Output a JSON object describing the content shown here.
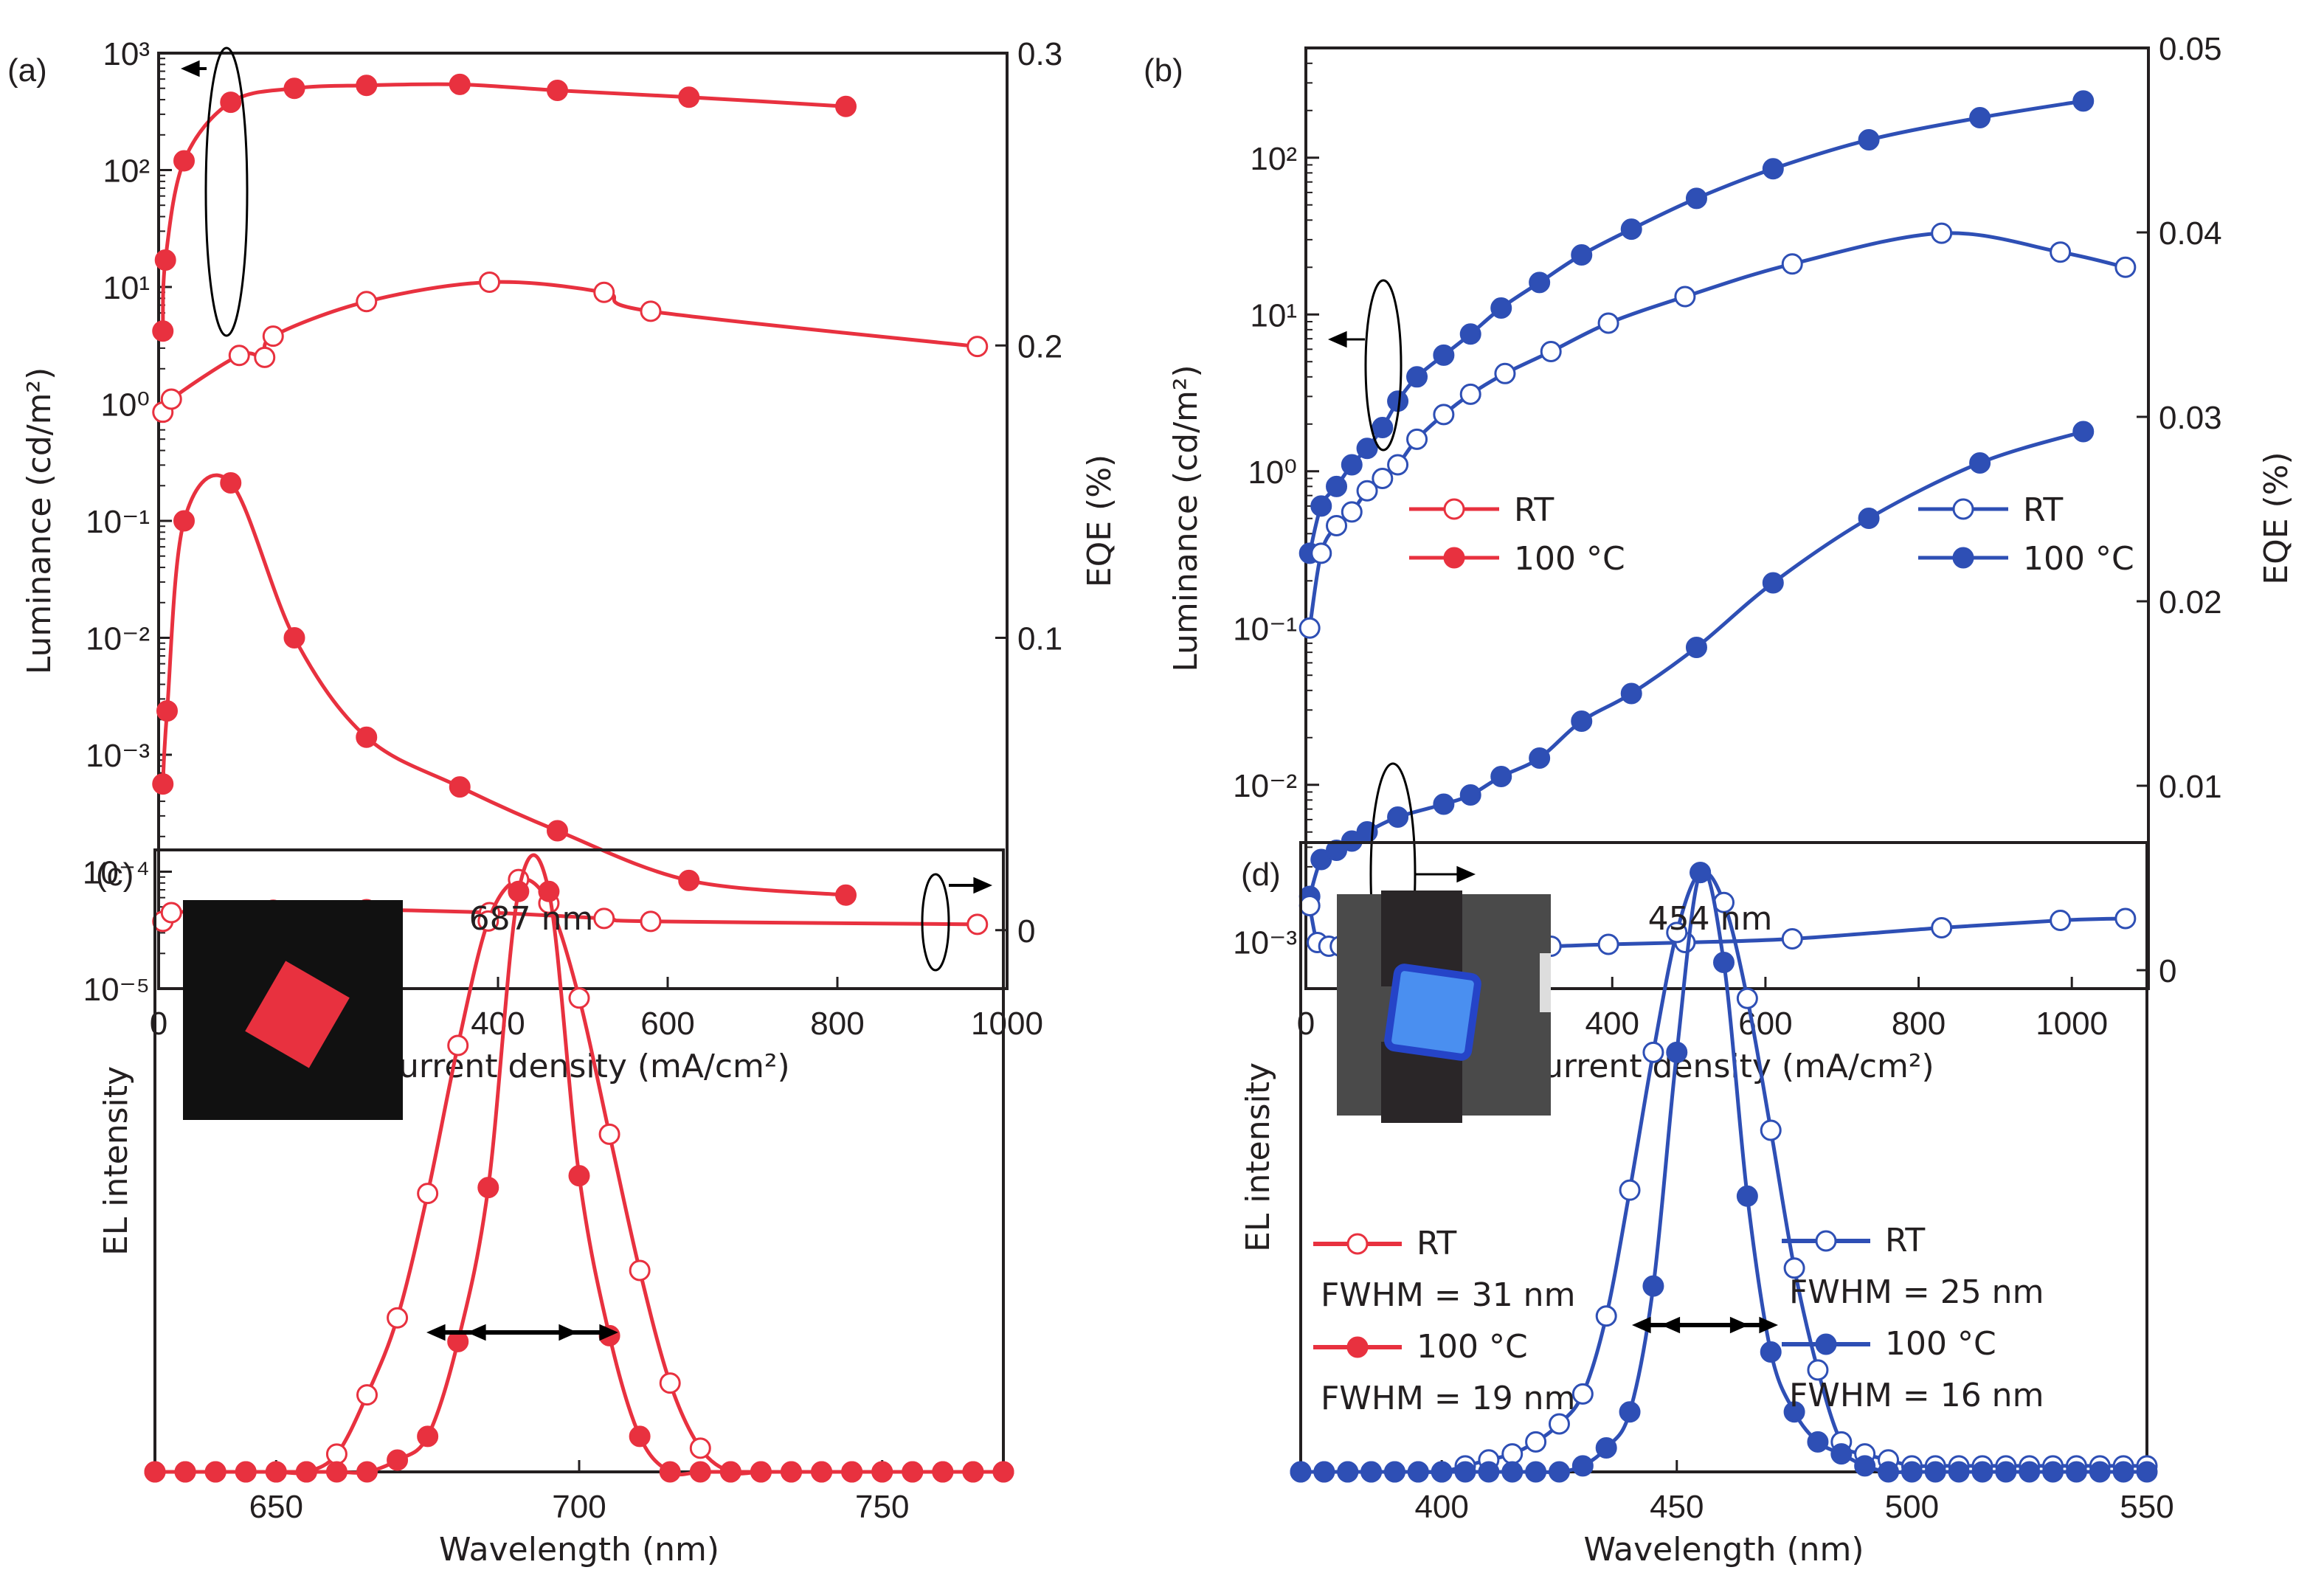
{
  "colors": {
    "red": "#e8313f",
    "blue": "#2e4fb5",
    "axis": "#231f20"
  },
  "chart_data": [
    {
      "panel": "(a)",
      "type": "line",
      "xlabel": "Current density  (mA/cm²)",
      "ylabel": "Luminance (cd/m²)",
      "y2label": "EQE (%)",
      "xlim": [
        0,
        1000
      ],
      "ylim_log10": [
        -5,
        3
      ],
      "y2lim": [
        -0.02,
        0.3
      ],
      "xticks": [
        "0",
        "200",
        "400",
        "600",
        "800",
        "1000"
      ],
      "xtick_values": [
        0,
        200,
        400,
        600,
        800,
        1000
      ],
      "yticks": [
        "10³",
        "10²",
        "10¹",
        "10⁰",
        "10⁻¹",
        "10⁻²",
        "10⁻³",
        "10⁻⁴",
        "10⁻⁵"
      ],
      "ytick_values_log10": [
        3,
        2,
        1,
        0,
        -1,
        -2,
        -3,
        -4,
        -5
      ],
      "y2ticks": [
        "0.3",
        "0.2",
        "0.1",
        "0"
      ],
      "y2tick_values": [
        0.3,
        0.2,
        0.1,
        0
      ],
      "legend": [
        "RT",
        "100 °C"
      ],
      "legend_position": "lower-right",
      "series": [
        {
          "name": "100 °C luminance",
          "axis": "left",
          "marker": "filled",
          "x": [
            5,
            8,
            30,
            85,
            160,
            245,
            355,
            470,
            625,
            810
          ],
          "y": [
            4.2,
            17,
            120,
            380,
            500,
            530,
            540,
            480,
            420,
            350
          ]
        },
        {
          "name": "RT luminance",
          "axis": "left",
          "marker": "open",
          "x": [
            5,
            15,
            95,
            125,
            135,
            245,
            390,
            525,
            580,
            965
          ],
          "y": [
            0.85,
            1.1,
            2.6,
            2.5,
            3.8,
            7.5,
            11,
            9,
            6.2,
            3.1
          ]
        },
        {
          "name": "100 °C EQE",
          "axis": "right",
          "marker": "filled",
          "x": [
            5,
            10,
            30,
            85,
            160,
            245,
            355,
            470,
            625,
            810
          ],
          "y": [
            0.05,
            0.075,
            0.14,
            0.153,
            0.1,
            0.066,
            0.049,
            0.034,
            0.017,
            0.012
          ]
        },
        {
          "name": "RT EQE",
          "axis": "right",
          "marker": "open",
          "x": [
            5,
            15,
            95,
            125,
            135,
            245,
            390,
            525,
            580,
            965
          ],
          "y": [
            0.003,
            0.006,
            0.0065,
            0.0065,
            0.0068,
            0.007,
            0.006,
            0.004,
            0.003,
            0.002
          ]
        }
      ],
      "annotations": [
        "left-arrow ellipse (luminance)",
        "right-arrow ellipse (EQE)"
      ]
    },
    {
      "panel": "(b)",
      "type": "line",
      "xlabel": "Current density  (mA/cm²)",
      "ylabel": "Luminance (cd/m²)",
      "y2label": "EQE (%)",
      "xlim": [
        0,
        1100
      ],
      "ylim_log10": [
        -3.3,
        2.7
      ],
      "y2lim": [
        -0.001,
        0.05
      ],
      "xticks": [
        "0",
        "200",
        "400",
        "600",
        "800",
        "1000"
      ],
      "xtick_values": [
        0,
        200,
        400,
        600,
        800,
        1000
      ],
      "yticks": [
        "10²",
        "10¹",
        "10⁰",
        "10⁻¹",
        "10⁻²",
        "10⁻³"
      ],
      "ytick_values_log10": [
        2,
        1,
        0,
        -1,
        -2,
        -3
      ],
      "y2ticks": [
        "0.05",
        "0.04",
        "0.03",
        "0.02",
        "0.01",
        "0"
      ],
      "y2tick_values": [
        0.05,
        0.04,
        0.03,
        0.02,
        0.01,
        0
      ],
      "legend": [
        "RT",
        "100 °C"
      ],
      "legend_position": "lower-right",
      "series": [
        {
          "name": "100 °C luminance",
          "axis": "left",
          "marker": "filled",
          "x": [
            5,
            20,
            40,
            60,
            80,
            100,
            120,
            145,
            180,
            215,
            255,
            305,
            360,
            425,
            510,
            610,
            735,
            880,
            1015
          ],
          "y": [
            0.3,
            0.6,
            0.8,
            1.1,
            1.4,
            1.9,
            2.8,
            4,
            5.5,
            7.5,
            11,
            16,
            24,
            35,
            55,
            85,
            130,
            180,
            230
          ]
        },
        {
          "name": "RT luminance",
          "axis": "left",
          "marker": "open",
          "x": [
            5,
            20,
            40,
            60,
            80,
            100,
            120,
            145,
            180,
            215,
            260,
            320,
            395,
            495,
            635,
            830,
            985,
            1070
          ],
          "y": [
            0.1,
            0.3,
            0.45,
            0.55,
            0.75,
            0.9,
            1.1,
            1.6,
            2.3,
            3.1,
            4.2,
            5.8,
            8.8,
            13,
            21,
            33,
            25,
            20
          ]
        },
        {
          "name": "100 °C EQE",
          "axis": "right",
          "marker": "filled",
          "x": [
            5,
            20,
            40,
            60,
            80,
            120,
            180,
            215,
            255,
            305,
            360,
            425,
            510,
            610,
            735,
            880,
            1015
          ],
          "y": [
            0.004,
            0.006,
            0.0065,
            0.007,
            0.0075,
            0.0083,
            0.009,
            0.0095,
            0.0105,
            0.0115,
            0.0135,
            0.015,
            0.0175,
            0.021,
            0.0245,
            0.0275,
            0.0292
          ]
        },
        {
          "name": "RT EQE",
          "axis": "right",
          "marker": "open",
          "x": [
            5,
            15,
            30,
            45,
            60,
            80,
            100,
            120,
            150,
            180,
            215,
            260,
            320,
            395,
            495,
            635,
            830,
            985,
            1070
          ],
          "y": [
            0.0035,
            0.0015,
            0.0013,
            0.0013,
            0.0012,
            0.0012,
            0.0012,
            0.0012,
            0.0012,
            0.0013,
            0.0013,
            0.0013,
            0.0013,
            0.0014,
            0.0015,
            0.0017,
            0.0023,
            0.0027,
            0.0028
          ]
        }
      ],
      "annotations": [
        "left-arrow ellipse (luminance)",
        "right-arrow ellipse (EQE)"
      ]
    },
    {
      "panel": "(c)",
      "type": "line",
      "xlabel": "Wavelength (nm)",
      "ylabel": "EL intensity",
      "xlim": [
        630,
        770
      ],
      "ylim": [
        0,
        1.05
      ],
      "xticks": [
        "650",
        "700",
        "750"
      ],
      "xtick_values": [
        650,
        700,
        750
      ],
      "peak_label": "687 nm",
      "legend": [
        "RT",
        "FWHM = 31 nm",
        "100 °C",
        "FWHM = 19 nm"
      ],
      "legend_position": "right",
      "inset": "red emitting device photo",
      "series": [
        {
          "name": "RT",
          "marker": "open",
          "x": [
            630,
            635,
            640,
            645,
            650,
            655,
            660,
            665,
            670,
            675,
            680,
            685,
            690,
            695,
            700,
            705,
            710,
            715,
            720,
            725,
            730,
            735,
            740,
            745,
            750,
            755,
            760,
            765,
            770
          ],
          "y": [
            0,
            0,
            0,
            0,
            0,
            0,
            0.03,
            0.13,
            0.26,
            0.47,
            0.72,
            0.93,
            1.0,
            0.96,
            0.8,
            0.57,
            0.34,
            0.15,
            0.04,
            0,
            0,
            0,
            0,
            0,
            0,
            0,
            0,
            0,
            0
          ]
        },
        {
          "name": "100 °C",
          "marker": "filled",
          "x": [
            630,
            635,
            640,
            645,
            650,
            655,
            660,
            665,
            670,
            675,
            680,
            685,
            690,
            695,
            700,
            705,
            710,
            715,
            720,
            725,
            730,
            735,
            740,
            745,
            750,
            755,
            760,
            765,
            770
          ],
          "y": [
            0,
            0,
            0,
            0,
            0,
            0,
            0,
            0,
            0.02,
            0.06,
            0.22,
            0.48,
            0.98,
            0.98,
            0.5,
            0.23,
            0.06,
            0,
            0,
            0,
            0,
            0,
            0,
            0,
            0,
            0,
            0,
            0,
            0
          ]
        }
      ],
      "fwhm_arrow_y": 0.5
    },
    {
      "panel": "(d)",
      "type": "line",
      "xlabel": "Wavelength (nm)",
      "ylabel": "EL intensity",
      "xlim": [
        370,
        550
      ],
      "ylim": [
        0,
        1.05
      ],
      "xticks": [
        "400",
        "450",
        "500",
        "550"
      ],
      "xtick_values": [
        400,
        450,
        500,
        550
      ],
      "peak_label": "454 nm",
      "legend": [
        "RT",
        "FWHM = 25 nm",
        "100 °C",
        "FWHM = 16 nm"
      ],
      "legend_position": "right",
      "inset": "blue emitting device photo",
      "series": [
        {
          "name": "RT",
          "marker": "open",
          "x": [
            370,
            375,
            380,
            385,
            390,
            395,
            400,
            405,
            410,
            415,
            420,
            425,
            430,
            435,
            440,
            445,
            450,
            455,
            460,
            465,
            470,
            475,
            480,
            485,
            490,
            495,
            500,
            505,
            510,
            515,
            520,
            525,
            530,
            535,
            540,
            545,
            550
          ],
          "y": [
            0,
            0,
            0,
            0,
            0,
            0,
            0,
            0.01,
            0.02,
            0.03,
            0.05,
            0.08,
            0.13,
            0.26,
            0.47,
            0.7,
            0.9,
            1.0,
            0.95,
            0.79,
            0.57,
            0.34,
            0.17,
            0.05,
            0.03,
            0.02,
            0.01,
            0.01,
            0.01,
            0.01,
            0.01,
            0.01,
            0.01,
            0.01,
            0.01,
            0.01,
            0.01
          ]
        },
        {
          "name": "100 °C",
          "marker": "filled",
          "x": [
            370,
            375,
            380,
            385,
            390,
            395,
            400,
            405,
            410,
            415,
            420,
            425,
            430,
            435,
            440,
            445,
            450,
            455,
            460,
            465,
            470,
            475,
            480,
            485,
            490,
            495,
            500,
            505,
            510,
            515,
            520,
            525,
            530,
            535,
            540,
            545,
            550
          ],
          "y": [
            0,
            0,
            0,
            0,
            0,
            0,
            0,
            0,
            0,
            0,
            0,
            0,
            0.01,
            0.04,
            0.1,
            0.31,
            0.7,
            1.0,
            0.85,
            0.46,
            0.2,
            0.1,
            0.05,
            0.03,
            0.01,
            0,
            0,
            0,
            0,
            0,
            0,
            0,
            0,
            0,
            0,
            0,
            0
          ]
        }
      ],
      "fwhm_arrow_y": 0.5
    }
  ]
}
